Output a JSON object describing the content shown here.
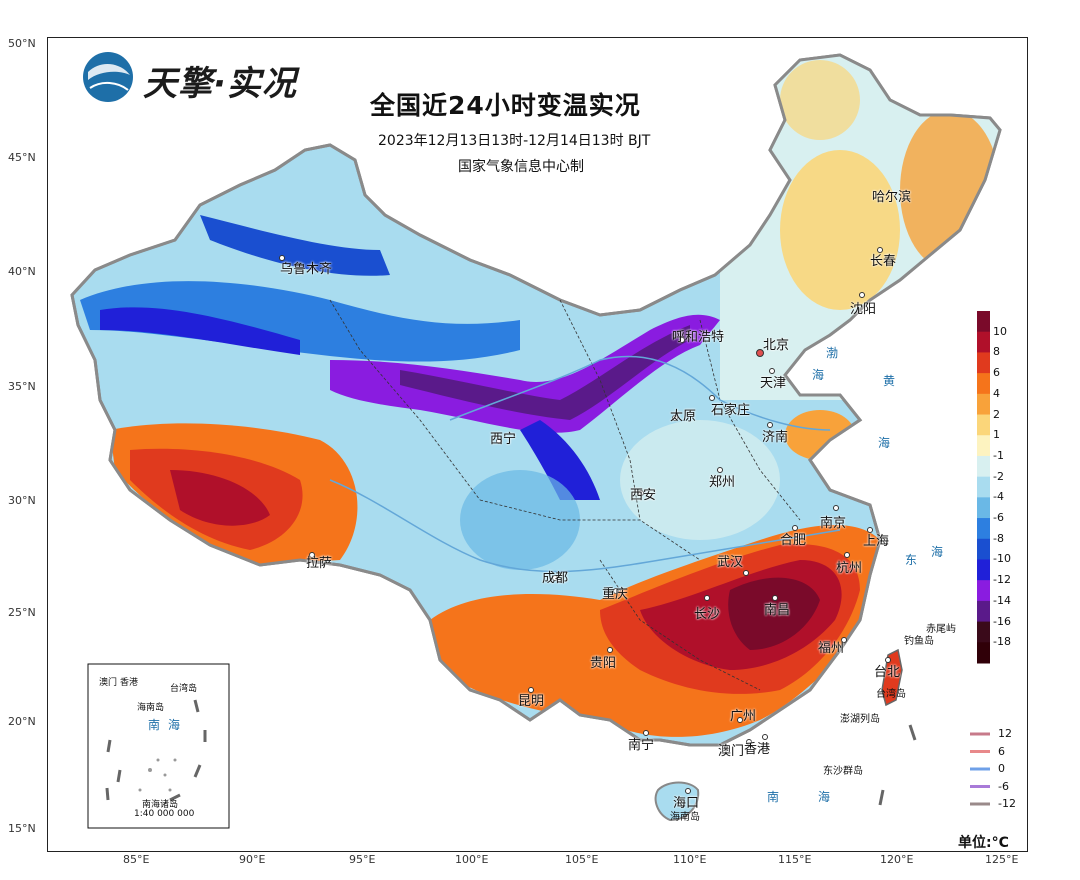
{
  "logo": {
    "text": "天擎·实况"
  },
  "header": {
    "title": "全国近24小时变温实况",
    "time_range": "2023年12月13日13时-12月14日13时 BJT",
    "producer": "国家气象信息中心制"
  },
  "axes": {
    "latitudes": [
      "50°N",
      "45°N",
      "40°N",
      "35°N",
      "30°N",
      "25°N",
      "20°N",
      "15°N"
    ],
    "longitudes": [
      "85°E",
      "90°E",
      "95°E",
      "100°E",
      "105°E",
      "110°E",
      "115°E",
      "120°E",
      "125°E"
    ]
  },
  "cities": {
    "urumqi": "乌鲁木齐",
    "harbin": "哈尔滨",
    "changchun": "长春",
    "shenyang": "沈阳",
    "hohhot": "呼和浩特",
    "beijing": "北京",
    "tianjin": "天津",
    "shijiazhuang": "石家庄",
    "taiyuan": "太原",
    "jinan": "济南",
    "xining": "西宁",
    "xian": "西安",
    "zhengzhou": "郑州",
    "nanjing": "南京",
    "hefei": "合肥",
    "shanghai": "上海",
    "hangzhou": "杭州",
    "wuhan": "武汉",
    "chengdu": "成都",
    "lhasa": "拉萨",
    "chongqing": "重庆",
    "changsha": "长沙",
    "nanchang": "南昌",
    "fuzhou": "福州",
    "guiyang": "贵阳",
    "kunming": "昆明",
    "taipei": "台北",
    "guangzhou": "广州",
    "nanning": "南宁",
    "macau": "澳门",
    "hongkong": "香港",
    "haikou": "海口"
  },
  "places": {
    "diaoyu": "钓鱼岛",
    "chiwei": "赤尾屿",
    "taiwan": "台湾岛",
    "penghu": "澎湖列岛",
    "dongsha": "东沙群岛",
    "hainan": "海南岛"
  },
  "waters": {
    "bo": "渤",
    "hai1": "海",
    "huang": "黄",
    "hai2": "海",
    "dong": "东",
    "hai3": "海",
    "nan": "南",
    "hai4": "海"
  },
  "inset": {
    "taiwan": "台湾岛",
    "hainan": "海南岛",
    "macau": "澳门",
    "hongkong": "香港",
    "sea_nan": "南",
    "sea_hai": "海",
    "islands": "南海诸岛",
    "scale": "1:40 000 000"
  },
  "colorbar": {
    "labels": [
      "10",
      "8",
      "6",
      "4",
      "2",
      "1",
      "-1",
      "-2",
      "-4",
      "-6",
      "-8",
      "-10",
      "-12",
      "-14",
      "-16",
      "-18"
    ],
    "colors": [
      "#7a0a2a",
      "#b0102a",
      "#e03a1e",
      "#f5741b",
      "#f8a23a",
      "#fbd67a",
      "#fdf3c0",
      "#d8f0f0",
      "#a9dcef",
      "#6ab8e6",
      "#2d7fe0",
      "#1a4fd0",
      "#2020d8",
      "#8a1ce0",
      "#5a1a8a",
      "#3a0a1a",
      "#300008"
    ]
  },
  "isotherm_legend": {
    "items": [
      {
        "label": "12",
        "color": "#c77a8a"
      },
      {
        "label": "6",
        "color": "#e8898a"
      },
      {
        "label": "0",
        "color": "#6fa0e8"
      },
      {
        "label": "-6",
        "color": "#a87ad8"
      },
      {
        "label": "-12",
        "color": "#9a8a8a"
      }
    ]
  },
  "unit": "单位:°C"
}
